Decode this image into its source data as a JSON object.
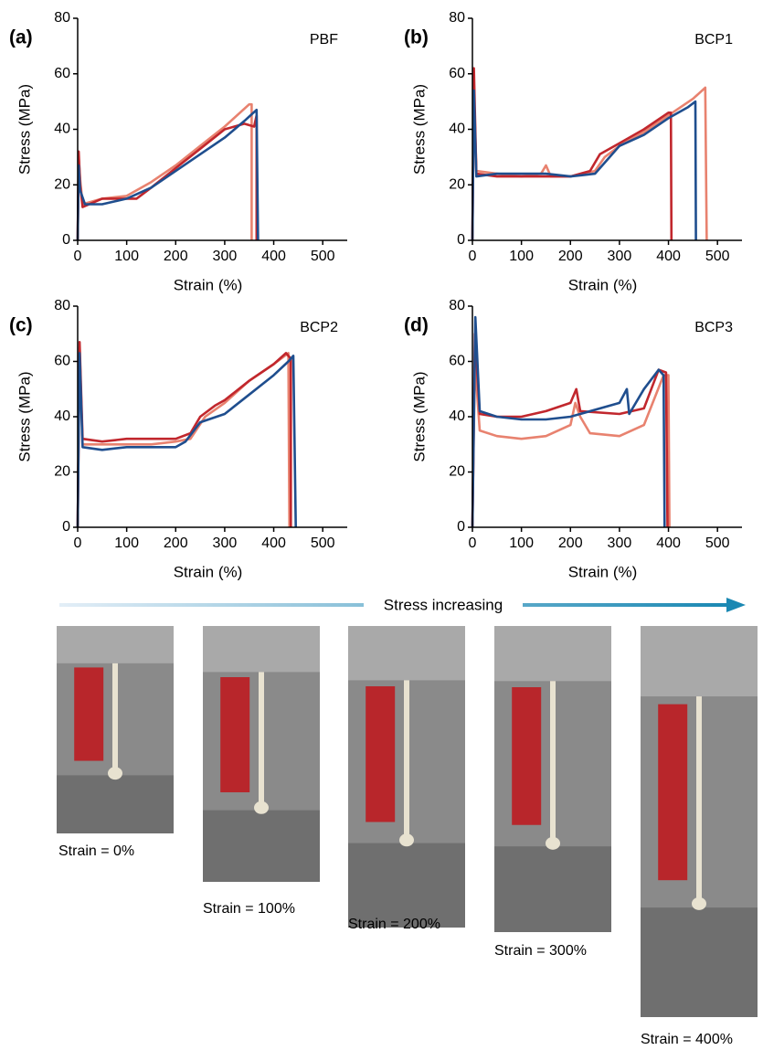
{
  "chart_data": [
    {
      "type": "line",
      "panel": "(a)",
      "title": "PBF",
      "x_label": "Strain (%)",
      "y_label": "Stress (MPa)",
      "xlim": [
        0,
        550
      ],
      "ylim": [
        0,
        80
      ],
      "xticks": [
        0,
        100,
        200,
        300,
        400,
        500
      ],
      "yticks": [
        0,
        20,
        40,
        60,
        80
      ],
      "series": [
        {
          "color": "#e8826f",
          "x": [
            0,
            2,
            5,
            10,
            50,
            100,
            150,
            200,
            250,
            300,
            350,
            355,
            355
          ],
          "values": [
            0,
            30,
            22,
            13,
            15,
            16,
            21,
            27,
            34,
            41,
            49,
            49,
            0
          ]
        },
        {
          "color": "#c1272d",
          "x": [
            0,
            2,
            5,
            10,
            50,
            80,
            120,
            150,
            200,
            250,
            300,
            340,
            360,
            365,
            365
          ],
          "values": [
            0,
            32,
            20,
            12,
            15,
            15,
            15,
            19,
            26,
            33,
            40,
            42,
            41,
            45,
            0
          ]
        },
        {
          "color": "#1f4e8e",
          "x": [
            0,
            2,
            5,
            15,
            50,
            100,
            150,
            200,
            250,
            300,
            340,
            365,
            368
          ],
          "values": [
            0,
            27,
            18,
            13,
            13,
            15,
            19,
            25,
            31,
            37,
            43,
            47,
            0
          ]
        }
      ]
    },
    {
      "type": "line",
      "panel": "(b)",
      "title": "BCP1",
      "x_label": "Strain (%)",
      "y_label": "Stress (MPa)",
      "xlim": [
        0,
        550
      ],
      "ylim": [
        0,
        80
      ],
      "xticks": [
        0,
        100,
        200,
        300,
        400,
        500
      ],
      "yticks": [
        0,
        20,
        40,
        60,
        80
      ],
      "series": [
        {
          "color": "#e8826f",
          "x": [
            0,
            3,
            8,
            50,
            100,
            140,
            150,
            160,
            200,
            250,
            270,
            300,
            350,
            400,
            450,
            475,
            478
          ],
          "values": [
            0,
            55,
            25,
            24,
            23,
            24,
            27,
            23,
            23,
            25,
            30,
            34,
            39,
            45,
            51,
            55,
            0
          ]
        },
        {
          "color": "#c1272d",
          "x": [
            0,
            3,
            8,
            50,
            100,
            150,
            200,
            240,
            260,
            300,
            350,
            400,
            405,
            406
          ],
          "values": [
            0,
            62,
            24,
            23,
            23,
            23,
            23,
            25,
            31,
            35,
            40,
            46,
            46,
            0
          ]
        },
        {
          "color": "#1f4e8e",
          "x": [
            0,
            3,
            8,
            50,
            100,
            150,
            200,
            250,
            280,
            300,
            350,
            400,
            440,
            455,
            456
          ],
          "values": [
            0,
            54,
            23,
            24,
            24,
            24,
            23,
            24,
            30,
            34,
            38,
            44,
            48,
            50,
            0
          ]
        }
      ]
    },
    {
      "type": "line",
      "panel": "(c)",
      "title": "BCP2",
      "x_label": "Strain (%)",
      "y_label": "Stress (MPa)",
      "xlim": [
        0,
        550
      ],
      "ylim": [
        0,
        80
      ],
      "xticks": [
        0,
        100,
        200,
        300,
        400,
        500
      ],
      "yticks": [
        0,
        20,
        40,
        60,
        80
      ],
      "series": [
        {
          "color": "#e8826f",
          "x": [
            0,
            4,
            10,
            50,
            100,
            150,
            200,
            230,
            260,
            300,
            350,
            400,
            430,
            432
          ],
          "values": [
            0,
            65,
            30,
            30,
            30,
            30,
            31,
            32,
            40,
            45,
            53,
            59,
            63,
            0
          ]
        },
        {
          "color": "#c1272d",
          "x": [
            0,
            4,
            10,
            50,
            100,
            150,
            200,
            230,
            250,
            280,
            300,
            350,
            400,
            425,
            435,
            435
          ],
          "values": [
            0,
            67,
            32,
            31,
            32,
            32,
            32,
            34,
            40,
            44,
            46,
            53,
            59,
            63,
            61,
            0
          ]
        },
        {
          "color": "#1f4e8e",
          "x": [
            0,
            4,
            10,
            50,
            100,
            150,
            200,
            220,
            250,
            300,
            350,
            400,
            430,
            440,
            445
          ],
          "values": [
            0,
            63,
            29,
            28,
            29,
            29,
            29,
            31,
            38,
            41,
            48,
            55,
            60,
            62,
            0
          ]
        }
      ]
    },
    {
      "type": "line",
      "panel": "(d)",
      "title": "BCP3",
      "x_label": "Strain (%)",
      "y_label": "Stress (MPa)",
      "xlim": [
        0,
        550
      ],
      "ylim": [
        0,
        80
      ],
      "xticks": [
        0,
        100,
        200,
        300,
        400,
        500
      ],
      "yticks": [
        0,
        20,
        40,
        60,
        80
      ],
      "series": [
        {
          "color": "#e8826f",
          "x": [
            0,
            5,
            15,
            50,
            100,
            150,
            200,
            210,
            220,
            240,
            300,
            350,
            390,
            400,
            402
          ],
          "values": [
            0,
            60,
            35,
            33,
            32,
            33,
            37,
            45,
            40,
            34,
            33,
            37,
            55,
            55,
            0
          ]
        },
        {
          "color": "#c1272d",
          "x": [
            0,
            5,
            15,
            50,
            100,
            150,
            200,
            212,
            220,
            300,
            350,
            380,
            395,
            398
          ],
          "values": [
            0,
            70,
            41,
            40,
            40,
            42,
            45,
            50,
            42,
            41,
            43,
            57,
            56,
            0
          ]
        },
        {
          "color": "#1f4e8e",
          "x": [
            0,
            6,
            15,
            50,
            100,
            150,
            200,
            300,
            315,
            320,
            350,
            380,
            390,
            392
          ],
          "values": [
            0,
            76,
            42,
            40,
            39,
            39,
            40,
            45,
            50,
            41,
            50,
            57,
            55,
            0
          ]
        }
      ]
    }
  ],
  "banner": "Stress increasing",
  "photos": [
    {
      "caption": "Strain = 0%"
    },
    {
      "caption": "Strain = 100%"
    },
    {
      "caption": "Strain = 200%"
    },
    {
      "caption": "Strain = 300%"
    },
    {
      "caption": "Strain = 400%"
    }
  ]
}
